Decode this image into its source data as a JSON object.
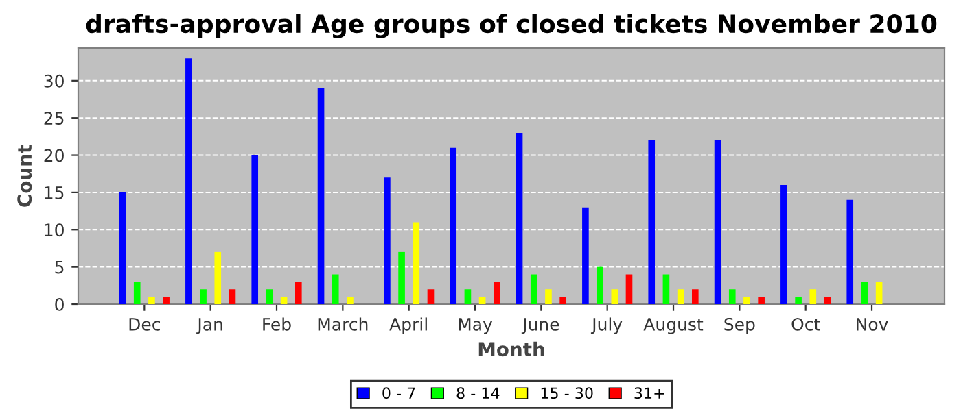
{
  "chart_data": {
    "type": "bar",
    "title": "drafts-approval Age groups of closed tickets November 2010",
    "xlabel": "Month",
    "ylabel": "Count",
    "categories": [
      "Dec",
      "Jan",
      "Feb",
      "March",
      "April",
      "May",
      "June",
      "July",
      "August",
      "Sep",
      "Oct",
      "Nov"
    ],
    "series": [
      {
        "name": "0 - 7",
        "color": "#0000ff",
        "values": [
          15,
          33,
          20,
          29,
          17,
          21,
          23,
          13,
          22,
          22,
          16,
          14
        ]
      },
      {
        "name": "8 - 14",
        "color": "#00ff00",
        "values": [
          3,
          2,
          2,
          4,
          7,
          2,
          4,
          5,
          4,
          2,
          1,
          3
        ]
      },
      {
        "name": "15 - 30",
        "color": "#ffff00",
        "values": [
          1,
          7,
          1,
          1,
          11,
          1,
          2,
          2,
          2,
          1,
          2,
          3
        ]
      },
      {
        "name": "31+",
        "color": "#ff0000",
        "values": [
          1,
          2,
          3,
          0,
          2,
          3,
          1,
          4,
          2,
          1,
          1,
          0
        ]
      }
    ],
    "ylim": [
      0,
      34.4
    ],
    "yticks": [
      0,
      5,
      10,
      15,
      20,
      25,
      30
    ],
    "grid": "y",
    "legend": "bottom"
  }
}
